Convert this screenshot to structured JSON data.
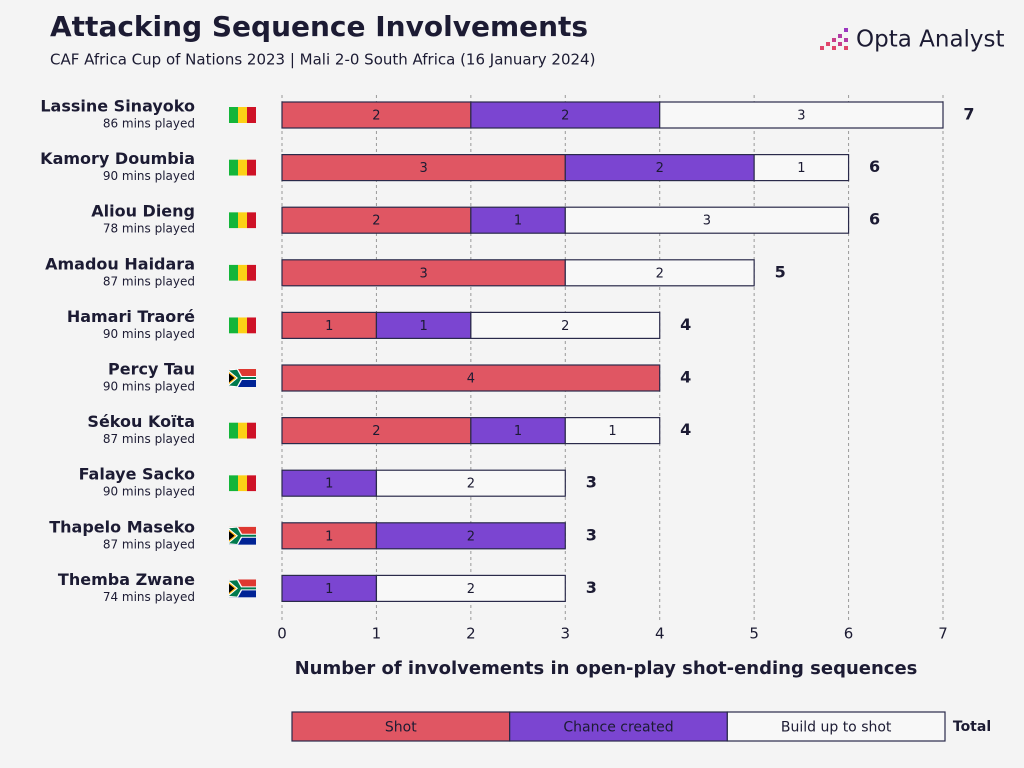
{
  "chart_data": {
    "type": "stacked-bar-horizontal",
    "title": "Attacking Sequence Involvements",
    "subtitle": "CAF Africa Cup of Nations 2023 | Mali 2-0 South Africa (16 January 2024)",
    "brand": "Opta Analyst",
    "categories": [
      "Lassine Sinayoko",
      "Kamory Doumbia",
      "Aliou Dieng",
      "Amadou Haidara",
      "Hamari Traoré",
      "Percy Tau",
      "Sékou Koïta",
      "Falaye Sacko",
      "Thapelo Maseko",
      "Themba Zwane"
    ],
    "category_subtitles": [
      "86 mins played",
      "90 mins played",
      "78 mins played",
      "87 mins played",
      "90 mins played",
      "90 mins played",
      "87 mins played",
      "90 mins played",
      "87 mins played",
      "74 mins played"
    ],
    "series": [
      {
        "name": "Shot",
        "color": "#e05663",
        "label_color": "#f6b9c0",
        "values": [
          2,
          3,
          2,
          3,
          1,
          4,
          2,
          null,
          1,
          null
        ]
      },
      {
        "name": "Chance created",
        "color": "#7b45d1",
        "label_color": "#cdb8f2",
        "values": [
          2,
          2,
          1,
          null,
          1,
          null,
          1,
          1,
          2,
          1
        ]
      },
      {
        "name": "Build up to shot",
        "color": "#f8f8f8",
        "label_color": "#7a7a86",
        "values": [
          3,
          1,
          3,
          2,
          2,
          null,
          1,
          2,
          null,
          2
        ]
      }
    ],
    "totals": [
      7,
      6,
      6,
      5,
      4,
      4,
      4,
      3,
      3,
      3
    ],
    "legend_total_label": "Total",
    "xlabel": "Number of involvements in open-play shot-ending sequences",
    "xlim": [
      0,
      7
    ],
    "xticks": [
      0,
      1,
      2,
      3,
      4,
      5,
      6,
      7
    ],
    "grid": true
  }
}
